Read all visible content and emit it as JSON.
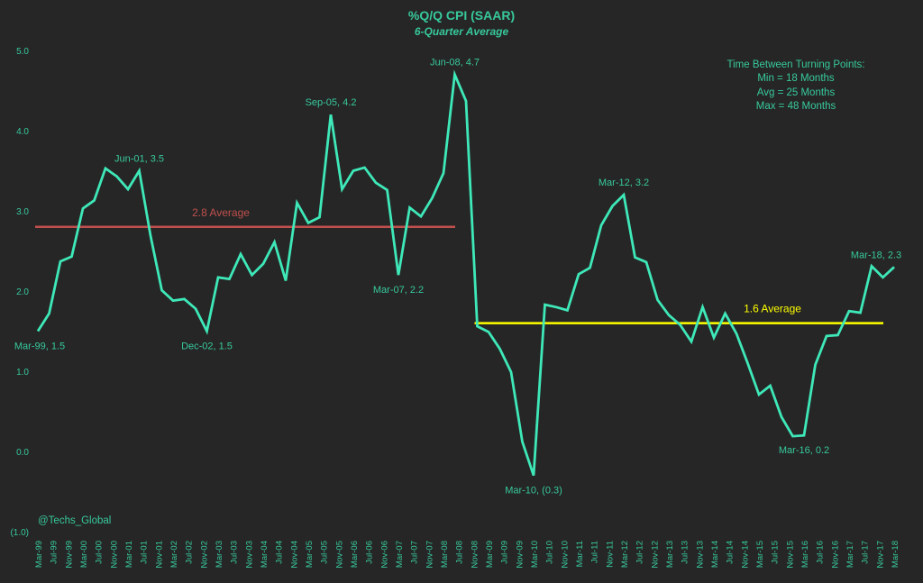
{
  "chart_data": {
    "type": "line",
    "title": "%Q/Q CPI (SAAR)",
    "subtitle": "6-Quarter Average",
    "ylim": [
      -1,
      5
    ],
    "yticks": [
      "(1.0)",
      "0.0",
      "1.0",
      "2.0",
      "3.0",
      "4.0",
      "5.0"
    ],
    "ytick_values": [
      -1,
      0,
      1,
      2,
      3,
      4,
      5
    ],
    "grid": false,
    "xtick_labels": [
      "Mar-99",
      "Jul-99",
      "Nov-99",
      "Mar-00",
      "Jul-00",
      "Nov-00",
      "Mar-01",
      "Jul-01",
      "Nov-01",
      "Mar-02",
      "Jul-02",
      "Nov-02",
      "Mar-03",
      "Jul-03",
      "Nov-03",
      "Mar-04",
      "Jul-04",
      "Nov-04",
      "Mar-05",
      "Jul-05",
      "Nov-05",
      "Mar-06",
      "Jul-06",
      "Nov-06",
      "Mar-07",
      "Jul-07",
      "Nov-07",
      "Mar-08",
      "Jul-08",
      "Nov-08",
      "Mar-09",
      "Jul-09",
      "Nov-09",
      "Mar-10",
      "Jul-10",
      "Nov-10",
      "Mar-11",
      "Jul-11",
      "Nov-11",
      "Mar-12",
      "Jul-12",
      "Nov-12",
      "Mar-13",
      "Jul-13",
      "Nov-13",
      "Mar-14",
      "Jul-14",
      "Nov-14",
      "Mar-15",
      "Jul-15",
      "Nov-15",
      "Mar-16",
      "Jul-16",
      "Nov-16",
      "Mar-17",
      "Jul-17",
      "Nov-17",
      "Mar-18"
    ],
    "x_start": "Mar-99",
    "x_frequency": "quarterly",
    "values": [
      1.5,
      1.72,
      2.37,
      2.43,
      3.03,
      3.13,
      3.53,
      3.43,
      3.27,
      3.5,
      2.69,
      2.01,
      1.88,
      1.9,
      1.78,
      1.5,
      2.17,
      2.15,
      2.46,
      2.2,
      2.34,
      2.61,
      2.13,
      3.1,
      2.85,
      2.92,
      4.2,
      3.27,
      3.5,
      3.54,
      3.35,
      3.26,
      2.2,
      3.04,
      2.93,
      3.16,
      3.47,
      4.7,
      4.37,
      1.56,
      1.49,
      1.28,
      0.99,
      0.12,
      -0.3,
      1.83,
      1.8,
      1.76,
      2.21,
      2.29,
      2.82,
      3.06,
      3.2,
      2.42,
      2.36,
      1.89,
      1.7,
      1.58,
      1.37,
      1.8,
      1.42,
      1.72,
      1.47,
      1.1,
      0.71,
      0.82,
      0.43,
      0.19,
      0.2,
      1.08,
      1.44,
      1.45,
      1.75,
      1.73,
      2.31,
      2.17,
      2.3
    ],
    "averages": [
      {
        "label": "2.8 Average",
        "value": 2.8,
        "from": "Mar-99",
        "to": "Sep-08",
        "color": "#c0504d"
      },
      {
        "label": "1.6 Average",
        "value": 1.6,
        "from": "Dec-08",
        "to": "Mar-18",
        "color": "#ffff00"
      }
    ],
    "annotations": [
      {
        "text": "Mar-99, 1.5",
        "index": 0,
        "pos": "below"
      },
      {
        "text": "Jun-01, 3.5",
        "index": 9,
        "pos": "above"
      },
      {
        "text": "Dec-02, 1.5",
        "index": 15,
        "pos": "below"
      },
      {
        "text": "Sep-05, 4.2",
        "index": 26,
        "pos": "above"
      },
      {
        "text": "Mar-07, 2.2",
        "index": 32,
        "pos": "below"
      },
      {
        "text": "Jun-08, 4.7",
        "index": 37,
        "pos": "above"
      },
      {
        "text": "Mar-10, (0.3)",
        "index": 44,
        "pos": "below"
      },
      {
        "text": "Mar-12, 3.2",
        "index": 52,
        "pos": "above"
      },
      {
        "text": "Mar-16, 0.2",
        "index": 68,
        "pos": "below"
      },
      {
        "text": "Mar-18, 2.3",
        "index": 76,
        "pos": "above"
      }
    ],
    "line_color": "#3ee8b8",
    "text_color": "#37c99b"
  },
  "notes": {
    "heading": "Time Between Turning Points:",
    "lines": [
      "Min = 18 Months",
      "Avg = 25 Months",
      "Max = 48 Months"
    ]
  },
  "watermark": "@Techs_Global"
}
